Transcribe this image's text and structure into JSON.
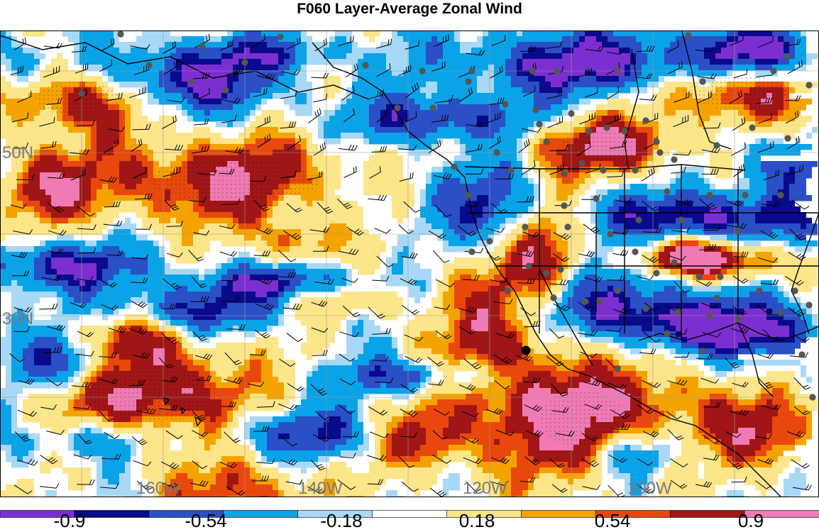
{
  "title": "F060 Layer-Average Zonal Wind",
  "colors": {
    "bins": [
      "#7b2fd0",
      "#0a0a8c",
      "#2a4fc6",
      "#0aa3e8",
      "#a8d8f5",
      "#ffffff",
      "#fde58a",
      "#f5a300",
      "#e8480c",
      "#a01616",
      "#f07ab4"
    ],
    "land_line": "#000000",
    "grid_line": "#9a9a9a",
    "station_dot": "#555555",
    "marker_dot": "#000000"
  },
  "latitude_labels": [
    "50N",
    "30N"
  ],
  "longitude_labels": [
    "160W",
    "140W",
    "120W",
    "100W"
  ],
  "colorbar": {
    "labels": [
      "-0.9",
      "-0.54",
      "-0.18",
      "0.18",
      "0.54",
      "0.9"
    ]
  }
}
